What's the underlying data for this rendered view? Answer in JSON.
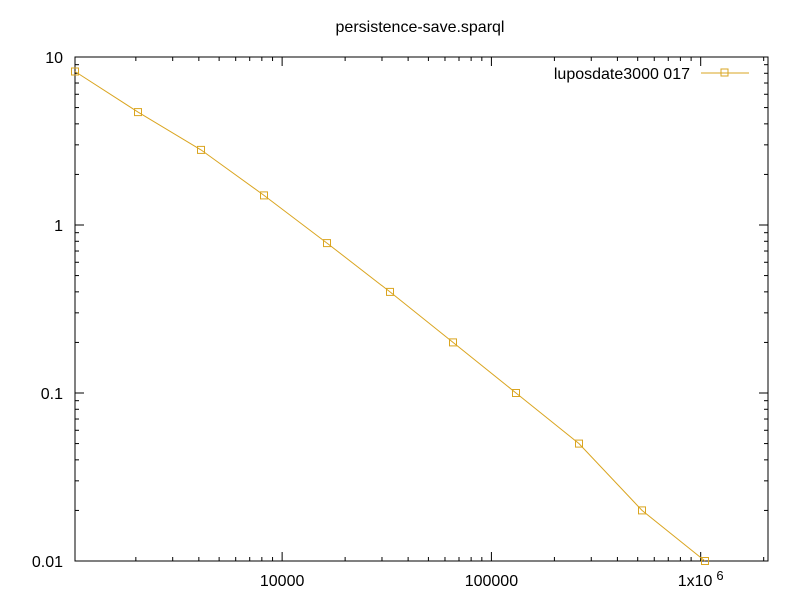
{
  "chart_data": {
    "type": "line",
    "title": "persistence-save.sparql",
    "xlabel": "",
    "ylabel": "",
    "x_scale": "log",
    "y_scale": "log",
    "xlim": [
      1024,
      2097152
    ],
    "ylim": [
      0.01,
      10
    ],
    "grid": false,
    "legend_position": "top-right",
    "x_ticks": [
      {
        "value": 10000,
        "label": "10000"
      },
      {
        "value": 100000,
        "label": "100000"
      },
      {
        "value": 1000000,
        "label": "1x10",
        "sup": "6"
      }
    ],
    "y_ticks": [
      {
        "value": 0.01,
        "label": "0.01"
      },
      {
        "value": 0.1,
        "label": "0.1"
      },
      {
        "value": 1,
        "label": "1"
      },
      {
        "value": 10,
        "label": "10"
      }
    ],
    "series": [
      {
        "name": "luposdate3000 017",
        "color": "#DAA520",
        "marker": "square",
        "x": [
          1024,
          2048,
          4096,
          8192,
          16384,
          32768,
          65536,
          131072,
          262144,
          524288,
          1048576
        ],
        "y": [
          8.2,
          4.7,
          2.8,
          1.5,
          0.78,
          0.4,
          0.2,
          0.1,
          0.05,
          0.02,
          0.01
        ]
      }
    ]
  }
}
